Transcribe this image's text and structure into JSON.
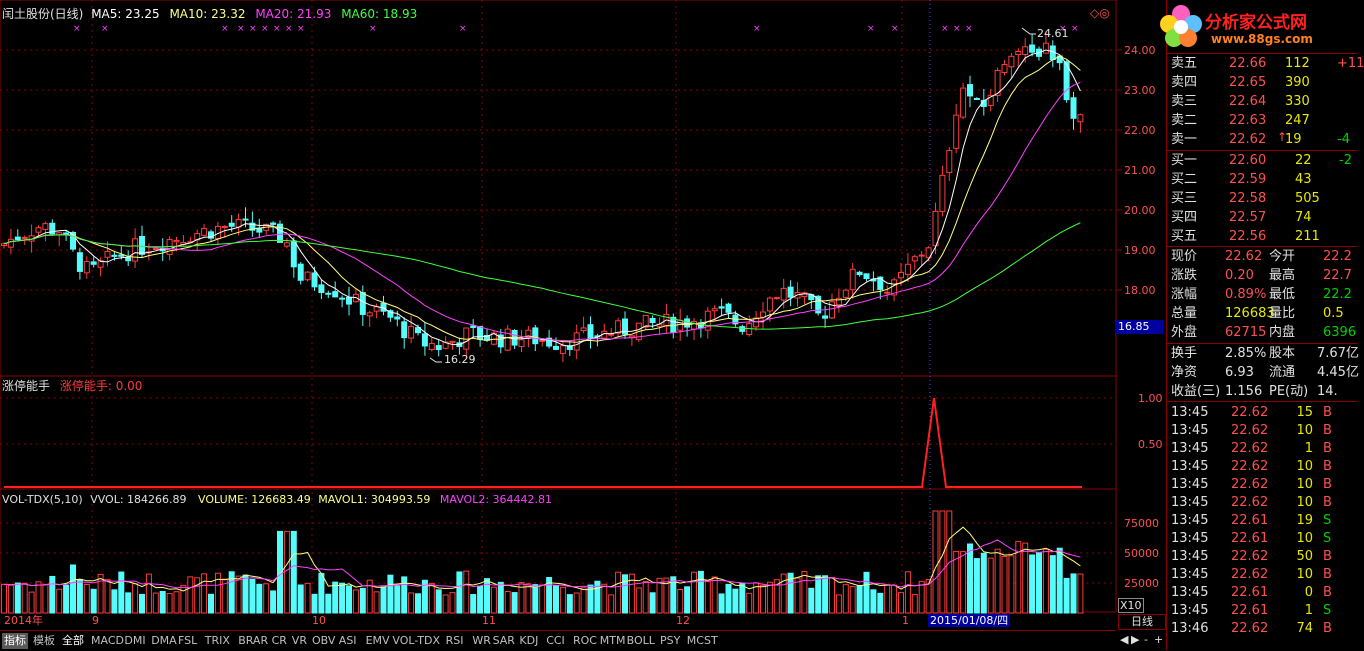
{
  "header": {
    "stock": "闰土股份(日线)",
    "ma5": "MA5: 23.25",
    "ma10": "MA10: 23.32",
    "ma20": "MA20: 21.93",
    "ma60": "MA60: 18.93",
    "high_label": "24.61",
    "low_label": "16.29",
    "current_tag": "16.85"
  },
  "price_axis": [
    "24.00",
    "23.00",
    "22.00",
    "21.00",
    "20.00",
    "19.00",
    "18.00"
  ],
  "indicator": {
    "name": "涨停能手",
    "label": "涨停能手: 0.00",
    "axis": [
      "1.00",
      "0.50"
    ]
  },
  "volume": {
    "name": "VOL-TDX(5,10)",
    "vvol": "VVOL: 184266.89",
    "volume": "VOLUME: 126683.49",
    "mavol1": "MAVOL1: 304993.59",
    "mavol2": "MAVOL2: 364442.81",
    "axis": [
      "75000",
      "50000",
      "25000"
    ],
    "unit": "X10"
  },
  "time_axis": {
    "labels": [
      "2014年",
      "9",
      "10",
      "11",
      "12",
      "1"
    ],
    "cursor_date": "2015/01/08/四"
  },
  "colors": {
    "up": "#ff3b3b",
    "down": "#54fcfc",
    "ma5": "#ffffff",
    "ma10": "#ffff80",
    "ma20": "#ff40ff",
    "ma60": "#40ff40",
    "grid": "#8a0000"
  },
  "panel": {
    "logo_text": "分析家公式网",
    "logo_url": "www.88gs.com",
    "logo_icon": "flower-logo-icon",
    "asks": [
      {
        "label": "卖五",
        "price": "22.66",
        "vol": "112",
        "chg": "+11"
      },
      {
        "label": "卖四",
        "price": "22.65",
        "vol": "390",
        "chg": ""
      },
      {
        "label": "卖三",
        "price": "22.64",
        "vol": "330",
        "chg": ""
      },
      {
        "label": "卖二",
        "price": "22.63",
        "vol": "247",
        "chg": ""
      },
      {
        "label": "卖一",
        "price": "22.62",
        "vol": "19",
        "chg": "-4"
      }
    ],
    "bids": [
      {
        "label": "买一",
        "price": "22.60",
        "vol": "22",
        "chg": "-2"
      },
      {
        "label": "买二",
        "price": "22.59",
        "vol": "43",
        "chg": ""
      },
      {
        "label": "买三",
        "price": "22.58",
        "vol": "505",
        "chg": ""
      },
      {
        "label": "买四",
        "price": "22.57",
        "vol": "74",
        "chg": ""
      },
      {
        "label": "买五",
        "price": "22.56",
        "vol": "211",
        "chg": ""
      }
    ],
    "quote": [
      {
        "l1": "现价",
        "v1": "22.62",
        "l2": "今开",
        "v2": "22.2"
      },
      {
        "l1": "涨跌",
        "v1": "0.20",
        "l2": "最高",
        "v2": "22.7"
      },
      {
        "l1": "涨幅",
        "v1": "0.89%",
        "l2": "最低",
        "v2": "22.2"
      },
      {
        "l1": "总量",
        "v1": "126683",
        "l2": "量比",
        "v2": "0.5"
      },
      {
        "l1": "外盘",
        "v1": "62715",
        "l2": "内盘",
        "v2": "6396"
      }
    ],
    "fundamentals": [
      {
        "l1": "换手",
        "v1": "2.85%",
        "l2": "股本",
        "v2": "7.67亿"
      },
      {
        "l1": "净资",
        "v1": "6.93",
        "l2": "流通",
        "v2": "4.45亿"
      },
      {
        "l1": "收益(三)",
        "v1": "1.156",
        "l2": "PE(动)",
        "v2": "14."
      }
    ],
    "ticks": [
      {
        "time": "13:45",
        "price": "22.62",
        "vol": "15",
        "side": "B"
      },
      {
        "time": "13:45",
        "price": "22.62",
        "vol": "10",
        "side": "B"
      },
      {
        "time": "13:45",
        "price": "22.62",
        "vol": "1",
        "side": "B"
      },
      {
        "time": "13:45",
        "price": "22.62",
        "vol": "10",
        "side": "B"
      },
      {
        "time": "13:45",
        "price": "22.62",
        "vol": "10",
        "side": "B"
      },
      {
        "time": "13:45",
        "price": "22.62",
        "vol": "10",
        "side": "B"
      },
      {
        "time": "13:45",
        "price": "22.61",
        "vol": "19",
        "side": "S"
      },
      {
        "time": "13:45",
        "price": "22.61",
        "vol": "10",
        "side": "S"
      },
      {
        "time": "13:45",
        "price": "22.62",
        "vol": "50",
        "side": "B"
      },
      {
        "time": "13:45",
        "price": "22.62",
        "vol": "10",
        "side": "B"
      },
      {
        "time": "13:45",
        "price": "22.61",
        "vol": "0",
        "side": "B"
      },
      {
        "time": "13:45",
        "price": "22.61",
        "vol": "1",
        "side": "S"
      },
      {
        "time": "13:46",
        "price": "22.62",
        "vol": "74",
        "side": "B"
      }
    ]
  },
  "tabs": [
    "指标",
    "模板",
    "全部",
    "MACD",
    "DMI",
    "DMA",
    "FSL",
    "TRIX",
    "BRAR",
    "CR",
    "VR",
    "OBV",
    "ASI",
    "EMV",
    "VOL-TDX",
    "RSI",
    "WR",
    "SAR",
    "KDJ",
    "CCI",
    "ROC",
    "MTM",
    "BOLL",
    "PSY",
    "MCST"
  ],
  "period_button": "日线",
  "nav_prev": "◀",
  "nav_next": "▶",
  "nav_minus": "-",
  "nav_plus": "+",
  "corner_icon": "diamond-icon"
}
